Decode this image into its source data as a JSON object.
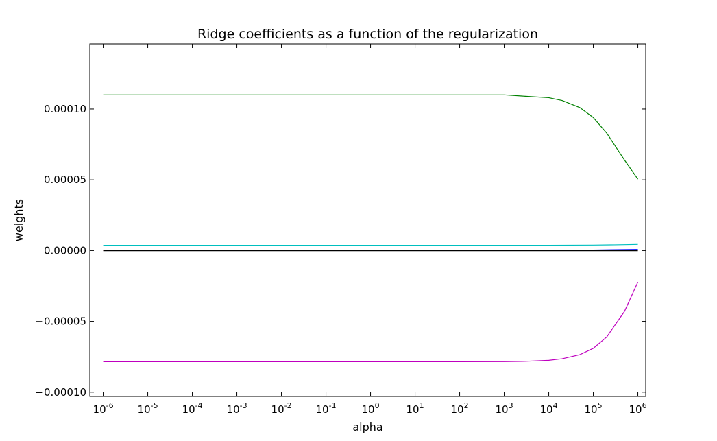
{
  "chart_data": {
    "type": "line",
    "title": "Ridge coefficients as a function of the regularization",
    "xlabel": "alpha",
    "ylabel": "weights",
    "x_scale": "log",
    "xlim": [
      5e-07,
      1500000
    ],
    "ylim": [
      -0.000103,
      0.000146
    ],
    "grid": false,
    "legend": "none",
    "x_ticks": [
      {
        "value": 1e-06,
        "base": "10",
        "exp": "-6"
      },
      {
        "value": 1e-05,
        "base": "10",
        "exp": "-5"
      },
      {
        "value": 0.0001,
        "base": "10",
        "exp": "-4"
      },
      {
        "value": 0.001,
        "base": "10",
        "exp": "-3"
      },
      {
        "value": 0.01,
        "base": "10",
        "exp": "-2"
      },
      {
        "value": 0.1,
        "base": "10",
        "exp": "-1"
      },
      {
        "value": 1,
        "base": "10",
        "exp": "0"
      },
      {
        "value": 10,
        "base": "10",
        "exp": "1"
      },
      {
        "value": 100,
        "base": "10",
        "exp": "2"
      },
      {
        "value": 1000,
        "base": "10",
        "exp": "3"
      },
      {
        "value": 10000,
        "base": "10",
        "exp": "4"
      },
      {
        "value": 100000,
        "base": "10",
        "exp": "5"
      },
      {
        "value": 1000000,
        "base": "10",
        "exp": "6"
      }
    ],
    "y_ticks": [
      {
        "value": 0.0001,
        "label": "0.00010"
      },
      {
        "value": 5e-05,
        "label": "0.00005"
      },
      {
        "value": 0,
        "label": "0.00000"
      },
      {
        "value": -5e-05,
        "label": "−0.00005"
      },
      {
        "value": -0.0001,
        "label": "−0.00010"
      }
    ],
    "series": [
      {
        "color": "#008000",
        "x": [
          1e-06,
          1e-05,
          0.0001,
          0.001,
          0.01,
          0.1,
          1,
          10,
          100,
          1000,
          3000,
          10000,
          20000,
          50000,
          100000,
          200000,
          500000,
          1000000
        ],
        "values": [
          0.00011,
          0.00011,
          0.00011,
          0.00011,
          0.00011,
          0.00011,
          0.00011,
          0.00011,
          0.00011,
          0.00011,
          0.000109,
          0.000108,
          0.000106,
          0.000101,
          9.4e-05,
          8.3e-05,
          6.4e-05,
          5.05e-05
        ]
      },
      {
        "color": "#00bfbf",
        "x": [
          1e-06,
          0.001,
          1,
          1000,
          10000,
          100000,
          300000,
          1000000
        ],
        "values": [
          3.8e-06,
          3.8e-06,
          3.8e-06,
          3.8e-06,
          3.8e-06,
          3.9e-06,
          4.1e-06,
          4.4e-06
        ]
      },
      {
        "color": "#0000ff",
        "x": [
          1e-06,
          1,
          10000,
          100000,
          1000000
        ],
        "values": [
          2e-07,
          2e-07,
          2e-07,
          4e-07,
          8e-07
        ]
      },
      {
        "color": "#bf00bf",
        "x": [
          1e-06,
          1,
          10000,
          100000,
          1000000
        ],
        "values": [
          1e-07,
          1e-07,
          1e-07,
          2e-07,
          4e-07
        ]
      },
      {
        "color": "#ff0000",
        "x": [
          1e-06,
          1,
          1000000
        ],
        "values": [
          0.0,
          0.0,
          0.0
        ]
      },
      {
        "color": "#000000",
        "x": [
          1e-06,
          1,
          1000000
        ],
        "values": [
          -1e-07,
          -1e-07,
          -1e-07
        ]
      },
      {
        "color": "#bf00bf",
        "x": [
          1e-06,
          1e-05,
          0.0001,
          0.001,
          0.01,
          0.1,
          1,
          10,
          100,
          1000,
          3000,
          10000,
          20000,
          50000,
          100000,
          200000,
          500000,
          1000000
        ],
        "values": [
          -7.85e-05,
          -7.85e-05,
          -7.85e-05,
          -7.85e-05,
          -7.85e-05,
          -7.85e-05,
          -7.85e-05,
          -7.85e-05,
          -7.85e-05,
          -7.84e-05,
          -7.82e-05,
          -7.75e-05,
          -7.64e-05,
          -7.35e-05,
          -6.9e-05,
          -6.1e-05,
          -4.3e-05,
          -2.22e-05
        ]
      }
    ]
  }
}
